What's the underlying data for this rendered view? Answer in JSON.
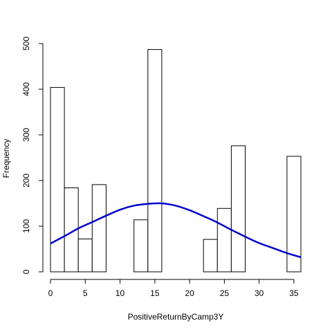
{
  "chart_data": {
    "type": "bar",
    "title": "",
    "xlabel": "PositiveReturnByCamp3Y",
    "ylabel": "Frequency",
    "xlim": [
      0,
      36
    ],
    "ylim": [
      0,
      500
    ],
    "grid": false,
    "bins": [
      {
        "x0": 0,
        "x1": 2,
        "value": 404
      },
      {
        "x0": 2,
        "x1": 4,
        "value": 184
      },
      {
        "x0": 4,
        "x1": 6,
        "value": 72
      },
      {
        "x0": 6,
        "x1": 8,
        "value": 191
      },
      {
        "x0": 8,
        "x1": 10,
        "value": 0
      },
      {
        "x0": 10,
        "x1": 12,
        "value": 0
      },
      {
        "x0": 12,
        "x1": 14,
        "value": 114
      },
      {
        "x0": 14,
        "x1": 16,
        "value": 487
      },
      {
        "x0": 16,
        "x1": 18,
        "value": 0
      },
      {
        "x0": 18,
        "x1": 20,
        "value": 0
      },
      {
        "x0": 20,
        "x1": 22,
        "value": 0
      },
      {
        "x0": 22,
        "x1": 24,
        "value": 71
      },
      {
        "x0": 24,
        "x1": 26,
        "value": 139
      },
      {
        "x0": 26,
        "x1": 28,
        "value": 276
      },
      {
        "x0": 28,
        "x1": 30,
        "value": 0
      },
      {
        "x0": 30,
        "x1": 32,
        "value": 0
      },
      {
        "x0": 32,
        "x1": 34,
        "value": 0
      },
      {
        "x0": 34,
        "x1": 36,
        "value": 253
      }
    ],
    "curve": {
      "color": "#0000cc",
      "x": [
        0,
        2,
        4,
        6,
        8,
        10,
        12,
        14,
        16,
        18,
        20,
        22,
        24,
        26,
        28,
        30,
        32,
        34,
        36
      ],
      "y": [
        62,
        78,
        95,
        109,
        123,
        136,
        145,
        149,
        150,
        145,
        135,
        122,
        108,
        92,
        77,
        63,
        52,
        41,
        32
      ]
    },
    "x_ticks": [
      0,
      5,
      10,
      15,
      20,
      25,
      30,
      35
    ],
    "y_ticks": [
      0,
      100,
      200,
      300,
      400,
      500
    ],
    "bar_fill": "#ffffff",
    "bar_stroke": "#000000"
  }
}
